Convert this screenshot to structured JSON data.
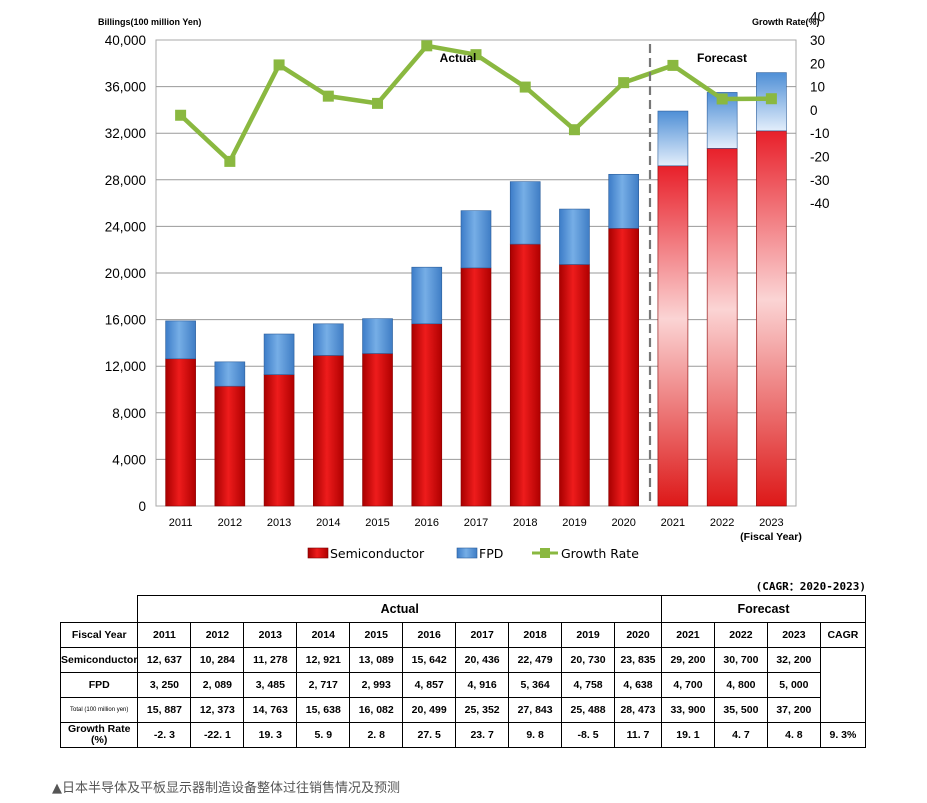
{
  "chart_data": {
    "type": "bar",
    "stacked": true,
    "categories": [
      "2011",
      "2012",
      "2013",
      "2014",
      "2015",
      "2016",
      "2017",
      "2018",
      "2019",
      "2020",
      "2021",
      "2022",
      "2023"
    ],
    "x_last_sub": "(Fiscal Year)",
    "ylabel_left": "Billings(100 million Yen)",
    "ylabel_right": "Growth Rate(%)",
    "ylim_left": [
      0,
      40000
    ],
    "yticks_left": [
      "0",
      "4,000",
      "8,000",
      "12,000",
      "16,000",
      "20,000",
      "24,000",
      "28,000",
      "32,000",
      "36,000",
      "40,000"
    ],
    "ylim_right": [
      -40,
      40
    ],
    "yticks_right": [
      "40",
      "30",
      "20",
      "10",
      "0",
      "-10",
      "-20",
      "-30",
      "-40"
    ],
    "grid": true,
    "legend_position": "bottom",
    "actual_label": "Actual",
    "forecast_label": "Forecast",
    "forecast_start_index": 10,
    "series": [
      {
        "name": "Semiconductor",
        "kind": "bar",
        "color": "#cc0000",
        "values": [
          12637,
          10284,
          11278,
          12921,
          13089,
          15642,
          20436,
          22479,
          20730,
          23835,
          29200,
          30700,
          32200
        ]
      },
      {
        "name": "FPD",
        "kind": "bar",
        "color": "#4f8fd6",
        "values": [
          3250,
          2089,
          3485,
          2717,
          2993,
          4857,
          4916,
          5364,
          4758,
          4638,
          4700,
          4800,
          5000
        ]
      },
      {
        "name": "Growth Rate",
        "kind": "line",
        "axis": "right",
        "color": "#8ab840",
        "values": [
          -2.3,
          -22.1,
          19.3,
          5.9,
          2.8,
          27.5,
          23.7,
          9.8,
          -8.5,
          11.7,
          19.1,
          4.7,
          4.8
        ]
      }
    ]
  },
  "table": {
    "cagr_note": "(CAGR：2020-2023)",
    "actual_label": "Actual",
    "forecast_label": "Forecast",
    "years_header": "Fiscal Year",
    "years": [
      "2011",
      "2012",
      "2013",
      "2014",
      "2015",
      "2016",
      "2017",
      "2018",
      "2019",
      "2020",
      "2021",
      "2022",
      "2023"
    ],
    "cagr_header": "CAGR",
    "row_semiconductor": {
      "label": "Semiconductor",
      "values": [
        "12, 637",
        "10, 284",
        "11, 278",
        "12, 921",
        "13, 089",
        "15, 642",
        "20, 436",
        "22, 479",
        "20, 730",
        "23, 835",
        "29, 200",
        "30, 700",
        "32, 200"
      ]
    },
    "row_fpd": {
      "label": "FPD",
      "values": [
        "3, 250",
        "2, 089",
        "3, 485",
        "2, 717",
        "2, 993",
        "4, 857",
        "4, 916",
        "5, 364",
        "4, 758",
        "4, 638",
        "4, 700",
        "4, 800",
        "5, 000"
      ]
    },
    "row_total": {
      "label": "Total (100 million yen)",
      "values": [
        "15, 887",
        "12, 373",
        "14, 763",
        "15, 638",
        "16, 082",
        "20, 499",
        "25, 352",
        "27, 843",
        "25, 488",
        "28, 473",
        "33, 900",
        "35, 500",
        "37, 200"
      ]
    },
    "row_growth": {
      "label_line1": "Growth Rate",
      "label_line2": "(%)",
      "values": [
        "-2. 3",
        "-22. 1",
        "19. 3",
        "5. 9",
        "2. 8",
        "27. 5",
        "23. 7",
        "9. 8",
        "-8. 5",
        "11. 7",
        "19. 1",
        "4. 7",
        "4. 8"
      ],
      "cagr": "9. 3%"
    }
  },
  "caption": "▲日本半导体及平板显示器制造设备整体过往销售情况及预测"
}
